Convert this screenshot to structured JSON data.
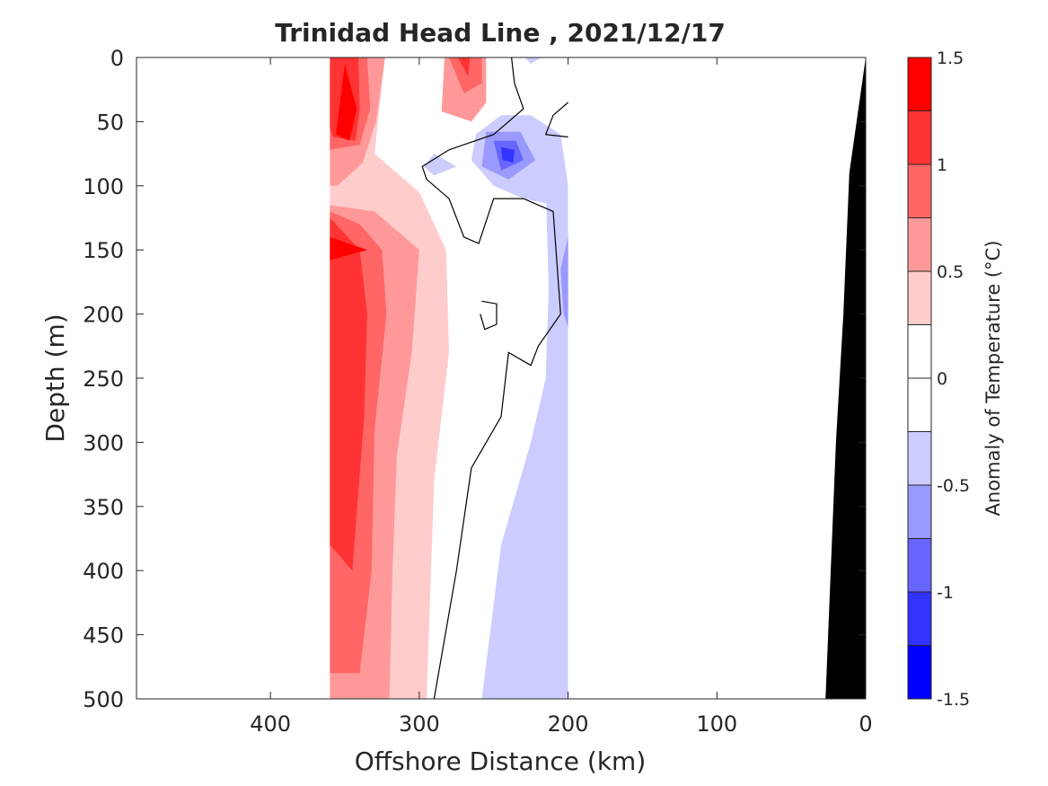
{
  "chart_data": {
    "type": "heatmap",
    "subtype": "filled-contour",
    "title": "Trinidad Head Line , 2021/12/17",
    "xlabel": "Offshore Distance (km)",
    "ylabel": "Depth (m)",
    "xlim": [
      490,
      0
    ],
    "ylim": [
      500,
      0
    ],
    "x_reversed": true,
    "y_reversed": true,
    "x_ticks": [
      400,
      300,
      200,
      100,
      0
    ],
    "y_ticks": [
      0,
      50,
      100,
      150,
      200,
      250,
      300,
      350,
      400,
      450,
      500
    ],
    "data_extent_km": [
      360,
      200
    ],
    "colorbar": {
      "label": "Anomaly of Temperature (°C)",
      "ticks": [
        -1.5,
        -1,
        -0.5,
        0,
        0.5,
        1,
        1.5
      ],
      "tick_labels": [
        "-1.5",
        "-1",
        "-0.5",
        "0",
        "0.5",
        "1",
        "1.5"
      ],
      "levels": [
        -1.5,
        -1.25,
        -1.0,
        -0.75,
        -0.5,
        -0.25,
        0,
        0.25,
        0.5,
        0.75,
        1.0,
        1.25,
        1.5
      ],
      "colors": [
        "#0000ff",
        "#3333ff",
        "#6666ff",
        "#9999ff",
        "#ccccff",
        "#ffffff",
        "#ffffff",
        "#ffcccc",
        "#ff9999",
        "#ff6666",
        "#ff3333",
        "#ff0000"
      ]
    },
    "regions": [
      {
        "level": 0.25,
        "points": [
          [
            360,
            0
          ],
          [
            323,
            0
          ],
          [
            330,
            75
          ],
          [
            300,
            105
          ],
          [
            282,
            150
          ],
          [
            280,
            230
          ],
          [
            290,
            330
          ],
          [
            295,
            500
          ],
          [
            360,
            500
          ]
        ]
      },
      {
        "level": 0.5,
        "points": [
          [
            360,
            0
          ],
          [
            323,
            0
          ],
          [
            329,
            50
          ],
          [
            338,
            82
          ],
          [
            355,
            100
          ],
          [
            360,
            100
          ]
        ]
      },
      {
        "level": 0.5,
        "points": [
          [
            283,
            0
          ],
          [
            255,
            0
          ],
          [
            255,
            35
          ],
          [
            265,
            50
          ],
          [
            285,
            42
          ]
        ]
      },
      {
        "level": 0.5,
        "points": [
          [
            360,
            115
          ],
          [
            330,
            120
          ],
          [
            300,
            150
          ],
          [
            305,
            230
          ],
          [
            315,
            310
          ],
          [
            318,
            400
          ],
          [
            320,
            500
          ],
          [
            360,
            500
          ]
        ]
      },
      {
        "level": 0.75,
        "points": [
          [
            360,
            0
          ],
          [
            335,
            0
          ],
          [
            333,
            40
          ],
          [
            340,
            68
          ],
          [
            360,
            72
          ]
        ]
      },
      {
        "level": 0.75,
        "points": [
          [
            280,
            0
          ],
          [
            258,
            0
          ],
          [
            258,
            20
          ],
          [
            270,
            28
          ]
        ]
      },
      {
        "level": 0.75,
        "points": [
          [
            360,
            120
          ],
          [
            340,
            130
          ],
          [
            325,
            150
          ],
          [
            322,
            200
          ],
          [
            330,
            290
          ],
          [
            332,
            400
          ],
          [
            340,
            480
          ],
          [
            360,
            480
          ]
        ]
      },
      {
        "level": 1.0,
        "points": [
          [
            360,
            0
          ],
          [
            341,
            0
          ],
          [
            340,
            40
          ],
          [
            343,
            65
          ],
          [
            358,
            62
          ],
          [
            360,
            55
          ]
        ]
      },
      {
        "level": 1.0,
        "points": [
          [
            274,
            0
          ],
          [
            266,
            0
          ],
          [
            267,
            15
          ]
        ]
      },
      {
        "level": 1.0,
        "points": [
          [
            360,
            125
          ],
          [
            340,
            150
          ],
          [
            335,
            200
          ],
          [
            337,
            280
          ],
          [
            345,
            400
          ],
          [
            360,
            380
          ]
        ]
      },
      {
        "level": 1.25,
        "points": [
          [
            350,
            5
          ],
          [
            342,
            40
          ],
          [
            347,
            65
          ],
          [
            356,
            60
          ]
        ]
      },
      {
        "level": 1.25,
        "points": [
          [
            360,
            140
          ],
          [
            335,
            150
          ],
          [
            360,
            158
          ]
        ]
      },
      {
        "level": -0.25,
        "points": [
          [
            297,
            85
          ],
          [
            290,
            75
          ],
          [
            275,
            85
          ],
          [
            290,
            92
          ]
        ]
      },
      {
        "level": -0.25,
        "points": [
          [
            262,
            60
          ],
          [
            245,
            45
          ],
          [
            225,
            45
          ],
          [
            205,
            60
          ],
          [
            200,
            100
          ],
          [
            210,
            115
          ],
          [
            230,
            110
          ],
          [
            250,
            100
          ],
          [
            265,
            80
          ]
        ]
      },
      {
        "level": -0.25,
        "points": [
          [
            215,
            100
          ],
          [
            213,
            180
          ],
          [
            215,
            250
          ],
          [
            225,
            300
          ],
          [
            245,
            380
          ],
          [
            258,
            500
          ],
          [
            200,
            500
          ],
          [
            200,
            100
          ]
        ]
      },
      {
        "level": -0.25,
        "points": [
          [
            229,
            0
          ],
          [
            218,
            0
          ],
          [
            225,
            5
          ]
        ]
      },
      {
        "level": -0.5,
        "points": [
          [
            255,
            58
          ],
          [
            232,
            58
          ],
          [
            222,
            80
          ],
          [
            240,
            95
          ],
          [
            258,
            85
          ]
        ]
      },
      {
        "level": -0.5,
        "points": [
          [
            200,
            140
          ],
          [
            205,
            165
          ],
          [
            203,
            200
          ],
          [
            200,
            210
          ]
        ]
      },
      {
        "level": -0.75,
        "points": [
          [
            250,
            65
          ],
          [
            235,
            65
          ],
          [
            230,
            80
          ],
          [
            245,
            88
          ]
        ]
      },
      {
        "level": -1.0,
        "points": [
          [
            245,
            70
          ],
          [
            236,
            72
          ],
          [
            237,
            82
          ],
          [
            244,
            80
          ]
        ]
      }
    ],
    "zero_contours": [
      [
        [
          238,
          0
        ],
        [
          236,
          20
        ],
        [
          230,
          40
        ],
        [
          250,
          60
        ],
        [
          280,
          72
        ],
        [
          298,
          85
        ],
        [
          295,
          95
        ],
        [
          280,
          110
        ],
        [
          270,
          140
        ],
        [
          260,
          145
        ],
        [
          250,
          110
        ],
        [
          230,
          110
        ],
        [
          210,
          120
        ],
        [
          205,
          200
        ],
        [
          220,
          225
        ],
        [
          225,
          240
        ],
        [
          240,
          230
        ],
        [
          245,
          280
        ],
        [
          265,
          320
        ],
        [
          275,
          400
        ],
        [
          290,
          500
        ]
      ],
      [
        [
          258,
          190
        ],
        [
          248,
          192
        ],
        [
          248,
          208
        ],
        [
          256,
          212
        ],
        [
          259,
          200
        ]
      ],
      [
        [
          200,
          35
        ],
        [
          210,
          45
        ],
        [
          215,
          60
        ],
        [
          200,
          62
        ]
      ]
    ],
    "bathymetry": [
      [
        27,
        500
      ],
      [
        20,
        300
      ],
      [
        15,
        200
      ],
      [
        11,
        90
      ],
      [
        0,
        0
      ]
    ]
  }
}
